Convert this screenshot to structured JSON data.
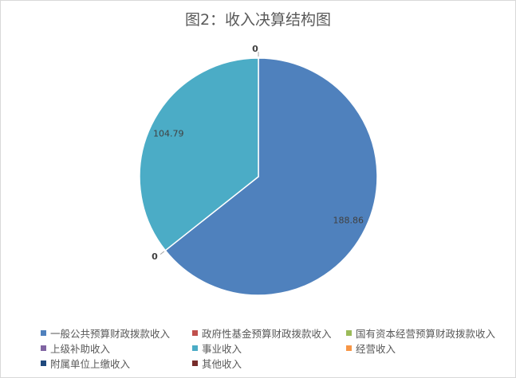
{
  "chart_data": {
    "type": "pie",
    "title": "图2：收入决算结构图",
    "legend_position": "bottom",
    "start_angle": "12 o'clock, clockwise",
    "slices": [
      {
        "name": "一般公共预算财政拨款收入",
        "value": 188.86,
        "color": "#4F81BD"
      },
      {
        "name": "政府性基金预算财政拨款收入",
        "value": 0,
        "color": "#C0504D"
      },
      {
        "name": "国有资本经营预算财政拨款收入",
        "value": 0,
        "color": "#9BBB59"
      },
      {
        "name": "上级补助收入",
        "value": 0,
        "color": "#8064A2"
      },
      {
        "name": "事业收入",
        "value": 104.79,
        "color": "#4BACC6"
      },
      {
        "name": "经营收入",
        "value": 0,
        "color": "#F79646"
      },
      {
        "name": "附属单位上缴收入",
        "value": 0,
        "color": "#1F497D"
      },
      {
        "name": "其他收入",
        "value": 0,
        "color": "#772C2A"
      }
    ],
    "data_labels": [
      "188.86",
      "0",
      "0",
      "0",
      "104.79",
      "0",
      "0",
      "0"
    ]
  }
}
